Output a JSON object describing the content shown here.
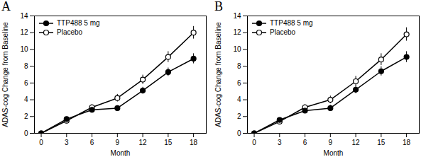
{
  "chart_data": [
    {
      "type": "line",
      "title": "A",
      "x": [
        0,
        3,
        6,
        9,
        12,
        15,
        18
      ],
      "series": [
        {
          "name": "TTP488 5 mg",
          "color": "#000000",
          "marker": "circle",
          "values": [
            0,
            1.7,
            2.8,
            3.0,
            5.1,
            7.3,
            8.9
          ],
          "errors": [
            0,
            0.2,
            0.3,
            0.3,
            0.4,
            0.5,
            0.6
          ]
        },
        {
          "name": "Placebo",
          "color": "#000000",
          "marker": "open_circle",
          "values": [
            0,
            1.5,
            3.1,
            4.2,
            6.4,
            9.1,
            12.0
          ],
          "errors": [
            0,
            0.25,
            0.35,
            0.45,
            0.55,
            0.65,
            0.75
          ]
        }
      ],
      "xlabel": "Month",
      "ylabel": "ADAS-cog Change from Baseline",
      "xlim": [
        -0.8,
        19.5
      ],
      "xticks": [
        0,
        3,
        6,
        9,
        12,
        15,
        18
      ],
      "ylim": [
        0,
        14
      ],
      "yticks": [
        0,
        2,
        4,
        6,
        8,
        10,
        12,
        14
      ],
      "grid": false,
      "legend": "upper left"
    },
    {
      "type": "line",
      "title": "B",
      "x": [
        0,
        3,
        6,
        9,
        12,
        15,
        18
      ],
      "series": [
        {
          "name": "TTP488 5 mg",
          "color": "#000000",
          "marker": "circle",
          "values": [
            0,
            1.6,
            2.7,
            3.0,
            5.2,
            7.4,
            9.1
          ],
          "errors": [
            0,
            0.2,
            0.3,
            0.35,
            0.45,
            0.55,
            0.65
          ]
        },
        {
          "name": "Placebo",
          "color": "#000000",
          "marker": "open_circle",
          "values": [
            0,
            1.4,
            3.1,
            4.0,
            6.2,
            8.8,
            11.8
          ],
          "errors": [
            0,
            0.25,
            0.35,
            0.45,
            0.6,
            0.7,
            0.8
          ]
        }
      ],
      "xlabel": "Month",
      "ylabel": "ADAS-cog Change from Baseline",
      "xlim": [
        -0.8,
        19.5
      ],
      "xticks": [
        0,
        3,
        6,
        9,
        12,
        15,
        18
      ],
      "ylim": [
        0,
        14
      ],
      "yticks": [
        0,
        2,
        4,
        6,
        8,
        10,
        12,
        14
      ],
      "grid": false,
      "legend": "upper left"
    }
  ]
}
